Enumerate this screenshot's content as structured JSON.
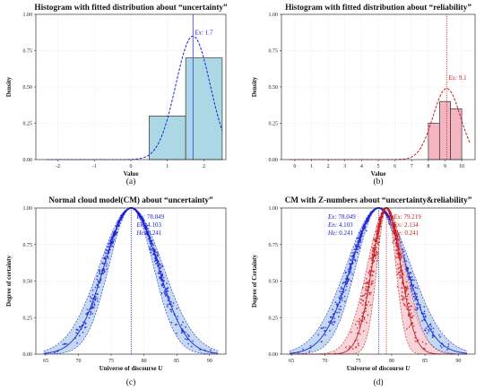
{
  "colors": {
    "blue": "#1f23d6",
    "blue_fill": "#b9d4ef",
    "red": "#c81e1e",
    "red_fill": "#f4c6cc",
    "hist_blue": "#acd8e6",
    "hist_red": "#f4b4c0",
    "vline_blue": "#3b3bd8",
    "vline_red": "#d62b2b"
  },
  "chart_data": [
    {
      "id": "a",
      "type": "bar",
      "title": "Histogram with fitted distribution about “uncertainty”",
      "xlabel": "Value",
      "ylabel": "Density",
      "caption": "(a)",
      "xlim": [
        -2.6,
        2.6
      ],
      "ylim": [
        0,
        1.0
      ],
      "xticks": [
        -2,
        -1,
        0,
        1,
        2
      ],
      "yticks": [
        0.0,
        0.25,
        0.5,
        0.75,
        1.0
      ],
      "bars": [
        {
          "x0": 0.5,
          "x1": 1.5,
          "value": 0.3
        },
        {
          "x0": 1.5,
          "x1": 2.5,
          "value": 0.7
        }
      ],
      "fit": {
        "mean": 1.7,
        "sd": 0.47,
        "x_from": -2.3,
        "x_to": 2.5
      },
      "ex_label": "Ex",
      "ex_value": "1.7",
      "ex_line": 1.7,
      "grid": true
    },
    {
      "id": "b",
      "type": "bar",
      "title": "Histogram with fitted distribution about “reliability”",
      "xlabel": "Value",
      "ylabel": "Density",
      "caption": "(b)",
      "xlim": [
        -0.8,
        10.8
      ],
      "ylim": [
        0,
        1.0
      ],
      "xticks": [
        0,
        1,
        2,
        3,
        4,
        5,
        6,
        7,
        8,
        9,
        10
      ],
      "yticks": [
        0.0,
        0.25,
        0.5,
        0.75,
        1.0
      ],
      "bars": [
        {
          "x0": 8.0,
          "x1": 8.67,
          "value": 0.25
        },
        {
          "x0": 8.67,
          "x1": 9.33,
          "value": 0.4
        },
        {
          "x0": 9.33,
          "x1": 10.0,
          "value": 0.35
        }
      ],
      "fit": {
        "mean": 9.1,
        "sd": 0.82,
        "x_from": -0.3,
        "x_to": 10.5
      },
      "ex_label": "Ex",
      "ex_value": "9.1",
      "ex_line": 9.1,
      "grid": true
    },
    {
      "id": "c",
      "type": "scatter",
      "title": "Normal cloud model(CM) about “uncertainty”",
      "xlabel": "Universe of discourse",
      "xlabel_var": "U",
      "ylabel": "Degree of certainty",
      "caption": "(c)",
      "xlim": [
        63.5,
        92.5
      ],
      "ylim": [
        0,
        1.0
      ],
      "xticks": [
        65,
        70,
        75,
        80,
        85,
        90
      ],
      "yticks": [
        0.0,
        0.25,
        0.5,
        0.75,
        1.0
      ],
      "clouds": [
        {
          "Ex": 78.049,
          "En": 4.103,
          "He": 0.241,
          "Ex_text": "78.049",
          "En_text": "4.103",
          "He_text": "0.241",
          "color": "blue"
        }
      ],
      "grid": true
    },
    {
      "id": "d",
      "type": "scatter",
      "title": "CM with Z-numbers about “uncertainty&reliability”",
      "xlabel": "Universe of discourse",
      "xlabel_var": "U",
      "ylabel": "Degree of Certainty",
      "caption": "(d)",
      "xlim": [
        63.5,
        92.5
      ],
      "ylim": [
        0,
        1.0
      ],
      "xticks": [
        65,
        70,
        75,
        80,
        85,
        90
      ],
      "yticks": [
        0.0,
        0.25,
        0.5,
        0.75,
        1.0
      ],
      "clouds": [
        {
          "Ex": 78.049,
          "En": 4.103,
          "He": 0.241,
          "Ex_text": "78.049",
          "En_text": "4.103",
          "He_text": "0.241",
          "color": "blue"
        },
        {
          "Ex": 79.219,
          "En": 2.134,
          "He": 0.241,
          "Ex_text": "79.219",
          "En_text": "2.134",
          "He_text": "0.241",
          "color": "red"
        }
      ],
      "grid": true
    }
  ]
}
